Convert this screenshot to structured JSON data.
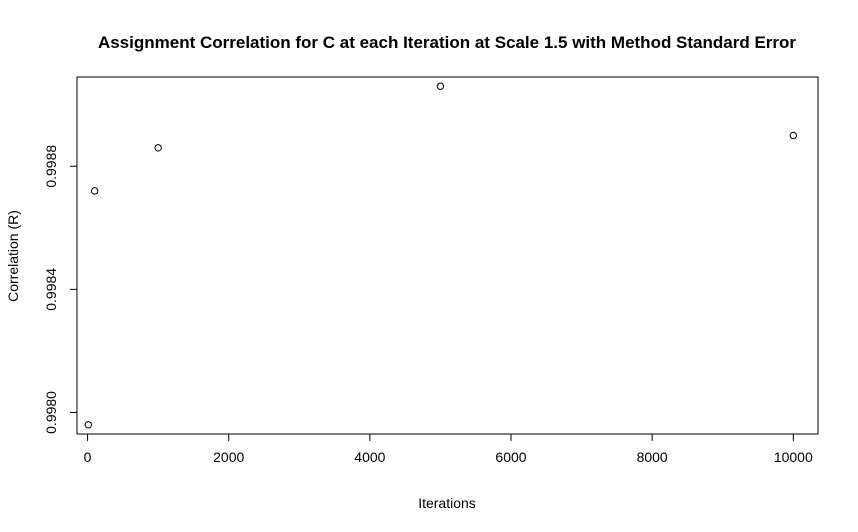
{
  "chart_data": {
    "type": "scatter",
    "title": "Assignment Correlation for C at each Iteration at Scale 1.5 with Method Standard Error",
    "xlabel": "Iterations",
    "ylabel": "Correlation (R)",
    "x": [
      10,
      100,
      1000,
      5000,
      10000
    ],
    "y": [
      0.99796,
      0.99872,
      0.99886,
      0.99906,
      0.9989
    ],
    "xlim": [
      -150,
      10350
    ],
    "ylim": [
      0.99793,
      0.99909
    ],
    "xticks": [
      0,
      2000,
      4000,
      6000,
      8000,
      10000
    ],
    "xtick_labels": [
      "0",
      "2000",
      "4000",
      "6000",
      "8000",
      "10000"
    ],
    "yticks": [
      0.998,
      0.9984,
      0.9988
    ],
    "ytick_labels": [
      "0.9980",
      "0.9984",
      "0.9988"
    ],
    "grid": false,
    "marker": "open-circle",
    "marker_color": "#000000"
  }
}
